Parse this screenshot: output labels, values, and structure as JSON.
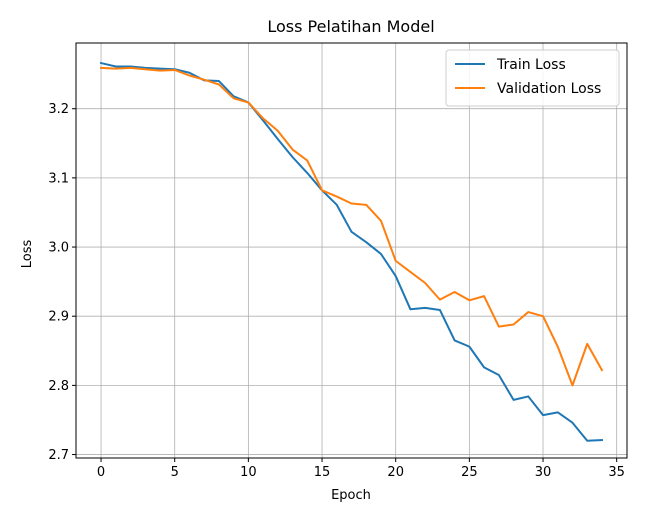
{
  "chart_data": {
    "type": "line",
    "title": "Loss Pelatihan Model",
    "xlabel": "Epoch",
    "ylabel": "Loss",
    "xlim": [
      -1.7,
      35.7
    ],
    "ylim": [
      2.695,
      3.295
    ],
    "xticks": [
      0,
      5,
      10,
      15,
      20,
      25,
      30,
      35
    ],
    "yticks": [
      2.7,
      2.8,
      2.9,
      3.0,
      3.1,
      3.2
    ],
    "xtick_labels": [
      "0",
      "5",
      "10",
      "15",
      "20",
      "25",
      "30",
      "35"
    ],
    "ytick_labels": [
      "2.7",
      "2.8",
      "2.9",
      "3.0",
      "3.1",
      "3.2"
    ],
    "grid": true,
    "legend_position": "top-right",
    "x": [
      0,
      1,
      2,
      3,
      4,
      5,
      6,
      7,
      8,
      9,
      10,
      11,
      12,
      13,
      14,
      15,
      16,
      17,
      18,
      19,
      20,
      21,
      22,
      23,
      24,
      25,
      26,
      27,
      28,
      29,
      30,
      31,
      32,
      33,
      34
    ],
    "series": [
      {
        "name": "Train Loss",
        "color": "#1f77b4",
        "values": [
          3.266,
          3.261,
          3.261,
          3.259,
          3.258,
          3.257,
          3.252,
          3.241,
          3.24,
          3.218,
          3.209,
          3.183,
          3.156,
          3.13,
          3.107,
          3.082,
          3.061,
          3.022,
          3.007,
          2.99,
          2.958,
          2.91,
          2.912,
          2.909,
          2.865,
          2.856,
          2.826,
          2.815,
          2.779,
          2.784,
          2.757,
          2.761,
          2.746,
          2.72,
          2.721
        ]
      },
      {
        "name": "Validation Loss",
        "color": "#ff7f0e",
        "values": [
          3.259,
          3.258,
          3.259,
          3.257,
          3.255,
          3.256,
          3.248,
          3.242,
          3.235,
          3.215,
          3.209,
          3.186,
          3.168,
          3.141,
          3.125,
          3.082,
          3.073,
          3.063,
          3.061,
          3.038,
          2.98,
          2.964,
          2.948,
          2.924,
          2.935,
          2.923,
          2.929,
          2.885,
          2.888,
          2.906,
          2.9,
          2.856,
          2.8,
          2.86,
          2.822
        ]
      }
    ]
  }
}
